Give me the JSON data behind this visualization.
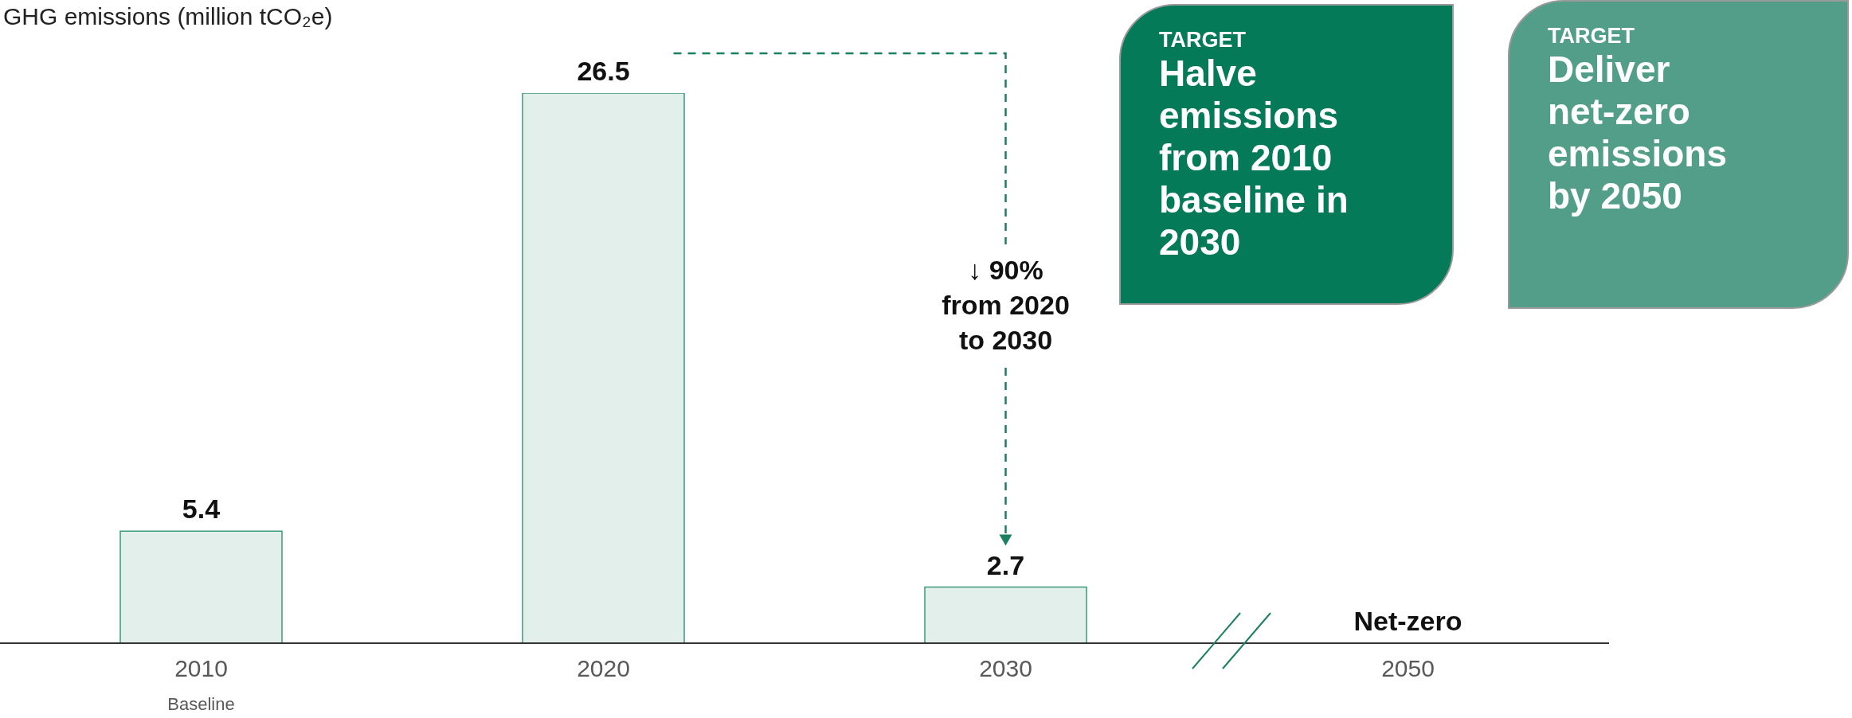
{
  "chart_data": {
    "type": "bar",
    "ylabel": "GHG emissions (million tCO₂e)",
    "categories": [
      "2010",
      "2020",
      "2030",
      "2050"
    ],
    "values": [
      5.4,
      26.5,
      2.7,
      0
    ],
    "value_labels": [
      "5.4",
      "26.5",
      "2.7",
      "Net-zero"
    ],
    "color": "#e3efeb",
    "annotations": [
      "Baseline",
      "↓ 90% from 2020 to 2030",
      "TARGET",
      "Halve emissions from 2010 baseline in 2030",
      "TARGET",
      "Deliver net-zero emissions by 2050"
    ]
  }
}
